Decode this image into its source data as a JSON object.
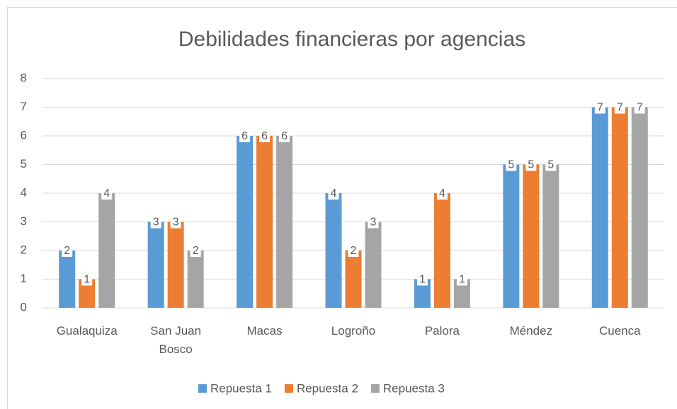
{
  "chart_data": {
    "type": "bar",
    "title": "Debilidades financieras por agencias",
    "categories": [
      "Gualaquiza",
      "San Juan Bosco",
      "Macas",
      "Logroño",
      "Palora",
      "Méndez",
      "Cuenca"
    ],
    "series": [
      {
        "name": "Repuesta 1",
        "color": "#5b9bd5",
        "values": [
          2,
          3,
          6,
          4,
          1,
          5,
          7
        ]
      },
      {
        "name": "Repuesta 2",
        "color": "#ed7d31",
        "values": [
          1,
          3,
          6,
          2,
          4,
          5,
          7
        ]
      },
      {
        "name": "Repuesta 3",
        "color": "#a5a5a5",
        "values": [
          4,
          2,
          6,
          3,
          1,
          5,
          7
        ]
      }
    ],
    "ylim": [
      0,
      8
    ],
    "yticks": [
      0,
      1,
      2,
      3,
      4,
      5,
      6,
      7,
      8
    ],
    "grid": true,
    "legend": "bottom"
  }
}
